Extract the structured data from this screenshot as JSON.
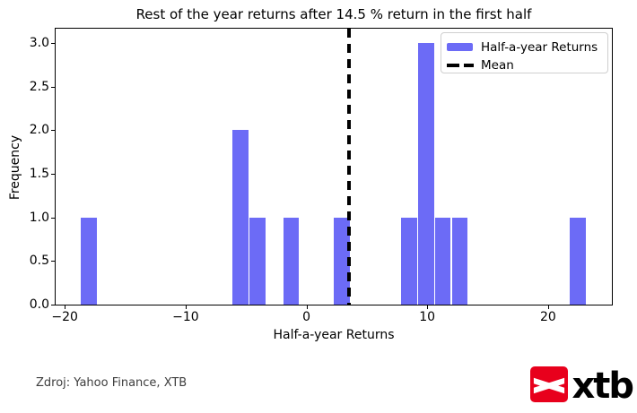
{
  "figure": {
    "source_note": "Zdroj: Yahoo Finance, XTB",
    "logo_text": "xtb"
  },
  "chart_data": {
    "type": "bar",
    "subtype": "histogram",
    "title": "Rest of the year returns after 14.5 % return in the first half",
    "xlabel": "Half-a-year Returns",
    "ylabel": "Frequency",
    "xlim": [
      -20.76,
      25.28
    ],
    "ylim": [
      0,
      3.163
    ],
    "grid": false,
    "xticks": {
      "values": [
        -20,
        -10,
        0,
        10,
        20
      ],
      "labels": [
        "−20",
        "−10",
        "0",
        "10",
        "20"
      ]
    },
    "yticks": {
      "values": [
        0,
        0.5,
        1,
        1.5,
        2,
        2.5,
        3
      ],
      "labels": [
        "0.0",
        "0.5",
        "1.0",
        "1.5",
        "2.0",
        "2.5",
        "3.0"
      ]
    },
    "bin_width": 1.3957,
    "bars": [
      {
        "x_left": -18.72,
        "height": 1
      },
      {
        "x_left": -6.16,
        "height": 2
      },
      {
        "x_left": -4.76,
        "height": 1
      },
      {
        "x_left": -1.97,
        "height": 1
      },
      {
        "x_left": 2.22,
        "height": 1
      },
      {
        "x_left": 7.8,
        "height": 1
      },
      {
        "x_left": 9.19,
        "height": 3
      },
      {
        "x_left": 10.59,
        "height": 1
      },
      {
        "x_left": 11.99,
        "height": 1
      },
      {
        "x_left": 21.76,
        "height": 1
      }
    ],
    "mean": 3.49,
    "legend": {
      "position": "upper-right",
      "items": [
        {
          "label": "Half-a-year Returns",
          "swatch": "bar"
        },
        {
          "label": "Mean",
          "swatch": "dashed-line"
        }
      ]
    }
  },
  "colors": {
    "bar": "#6c6bf6",
    "mean_line": "#000000",
    "footer_text": "#3d3d3d",
    "logo_red": "#e8001c"
  }
}
